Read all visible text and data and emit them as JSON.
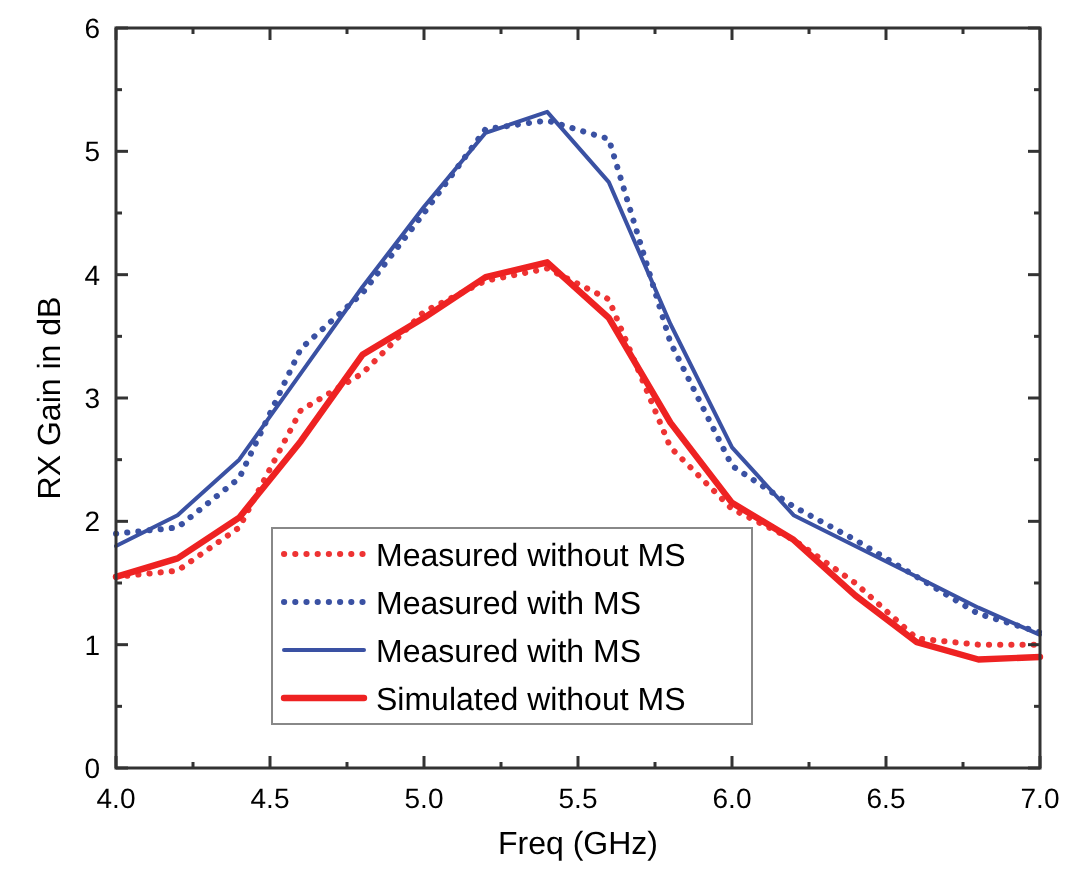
{
  "chart_data": {
    "type": "line",
    "xlabel": "Freq (GHz)",
    "ylabel": "RX Gain in dB",
    "x": [
      4.0,
      4.2,
      4.4,
      4.6,
      4.8,
      5.0,
      5.2,
      5.4,
      5.6,
      5.8,
      6.0,
      6.2,
      6.4,
      6.6,
      6.8,
      7.0
    ],
    "xlim": [
      4.0,
      7.0
    ],
    "ylim": [
      0,
      6
    ],
    "xticks": [
      {
        "value": 4.0,
        "label": "4.0"
      },
      {
        "value": 4.25,
        "label": null
      },
      {
        "value": 4.5,
        "label": "4.5"
      },
      {
        "value": 4.75,
        "label": null
      },
      {
        "value": 5.0,
        "label": "5.0"
      },
      {
        "value": 5.25,
        "label": null
      },
      {
        "value": 5.5,
        "label": "5.5"
      },
      {
        "value": 5.75,
        "label": null
      },
      {
        "value": 6.0,
        "label": "6.0"
      },
      {
        "value": 6.25,
        "label": null
      },
      {
        "value": 6.5,
        "label": "6.5"
      },
      {
        "value": 6.75,
        "label": null
      },
      {
        "value": 7.0,
        "label": "7.0"
      }
    ],
    "yticks": [
      0,
      {
        "value": 0.5,
        "label": null
      },
      1,
      {
        "value": 1.5,
        "label": null
      },
      2,
      {
        "value": 2.5,
        "label": null
      },
      3,
      {
        "value": 3.5,
        "label": null
      },
      4,
      {
        "value": 4.5,
        "label": null
      },
      5,
      {
        "value": 5.5,
        "label": null
      },
      6
    ],
    "grid": false,
    "legend": "bottom",
    "series": [
      {
        "name": "Measured without MS",
        "color": "#ee3333",
        "line_style": "dotted",
        "values": [
          1.55,
          1.6,
          1.95,
          2.9,
          3.2,
          3.7,
          3.95,
          4.05,
          3.8,
          2.6,
          2.1,
          1.85,
          1.5,
          1.05,
          1.0,
          1.0
        ]
      },
      {
        "name": "Measured with MS",
        "color": "#3a51a3",
        "line_style": "dotted",
        "values": [
          1.9,
          1.95,
          2.35,
          3.4,
          3.85,
          4.5,
          5.18,
          5.25,
          5.1,
          3.45,
          2.45,
          2.12,
          1.85,
          1.55,
          1.25,
          1.1
        ]
      },
      {
        "name": "Measured with MS",
        "color": "#3a51a3",
        "line_style": "solid",
        "values": [
          1.8,
          2.05,
          2.5,
          3.2,
          3.9,
          4.55,
          5.15,
          5.32,
          4.75,
          3.6,
          2.6,
          2.05,
          1.8,
          1.55,
          1.3,
          1.08
        ]
      },
      {
        "name": "Simulated without MS",
        "color": "#ee2222",
        "line_style": "solid",
        "values": [
          1.55,
          1.7,
          2.03,
          2.65,
          3.35,
          3.65,
          3.98,
          4.1,
          3.65,
          2.8,
          2.15,
          1.85,
          1.4,
          1.02,
          0.88,
          0.9
        ]
      }
    ]
  }
}
